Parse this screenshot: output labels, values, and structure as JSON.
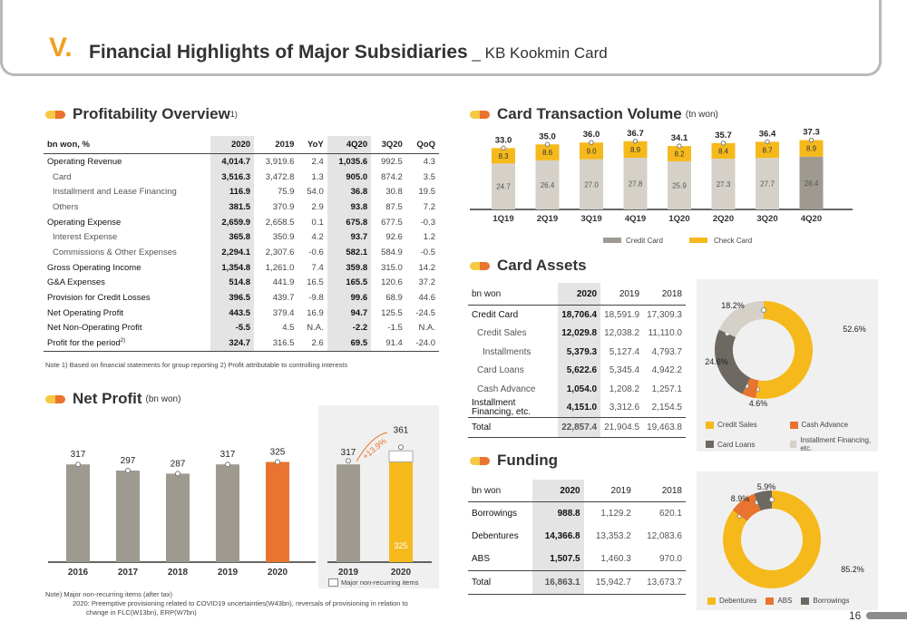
{
  "header": {
    "number": "V.",
    "title": "Financial Highlights of Major Subsidiaries",
    "separator": " _ ",
    "subtitle": "KB Kookmin Card",
    "page": "16"
  },
  "colors": {
    "gray": "#9e9a90",
    "dark": "#6d6861",
    "orange": "#e8742f",
    "yellow": "#f6b91b",
    "light": "#d5d1c8"
  },
  "profitability": {
    "title": "Profitability Overview",
    "sup": "1)",
    "headers": [
      "bn won, %",
      "2020",
      "2019",
      "YoY",
      "4Q20",
      "3Q20",
      "QoQ"
    ],
    "rows": [
      {
        "label": "Operating Revenue",
        "type": "main",
        "values": [
          "4,014.7",
          "3,919.6",
          "2.4",
          "1,035.6",
          "992.5",
          "4.3"
        ]
      },
      {
        "label": "Card",
        "type": "sub",
        "values": [
          "3,516.3",
          "3,472.8",
          "1.3",
          "905.0",
          "874.2",
          "3.5"
        ]
      },
      {
        "label": "Installment and Lease Financing",
        "type": "sub",
        "values": [
          "116.9",
          "75.9",
          "54.0",
          "36.8",
          "30.8",
          "19.5"
        ]
      },
      {
        "label": "Others",
        "type": "sub",
        "values": [
          "381.5",
          "370.9",
          "2.9",
          "93.8",
          "87.5",
          "7.2"
        ]
      },
      {
        "label": "Operating Expense",
        "type": "main",
        "values": [
          "2,659.9",
          "2,658.5",
          "0.1",
          "675.8",
          "677.5",
          "-0.3"
        ]
      },
      {
        "label": "Interest Expense",
        "type": "sub",
        "values": [
          "365.8",
          "350.9",
          "4.2",
          "93.7",
          "92.6",
          "1.2"
        ]
      },
      {
        "label": "Commissions & Other Expenses",
        "type": "sub",
        "values": [
          "2,294.1",
          "2,307.6",
          "-0.6",
          "582.1",
          "584.9",
          "-0.5"
        ]
      },
      {
        "label": "Gross Operating Income",
        "type": "main",
        "values": [
          "1,354.8",
          "1,261.0",
          "7.4",
          "359.8",
          "315.0",
          "14.2"
        ]
      },
      {
        "label": "G&A Expenses",
        "type": "main",
        "values": [
          "514.8",
          "441.9",
          "16.5",
          "165.5",
          "120.6",
          "37.2"
        ]
      },
      {
        "label": "Provision for Credit Losses",
        "type": "main",
        "values": [
          "396.5",
          "439.7",
          "-9.8",
          "99.6",
          "68.9",
          "44.6"
        ]
      },
      {
        "label": "Net Operating Profit",
        "type": "main",
        "values": [
          "443.5",
          "379.4",
          "16.9",
          "94.7",
          "125.5",
          "-24.5"
        ]
      },
      {
        "label": "Net Non-Operating Profit",
        "type": "main",
        "values": [
          "-5.5",
          "4.5",
          "N.A.",
          "-2.2",
          "-1.5",
          "N.A."
        ]
      },
      {
        "label": "Profit for the period",
        "sup": "2)",
        "type": "main",
        "values": [
          "324.7",
          "316.5",
          "2.6",
          "69.5",
          "91.4",
          "-24.0"
        ]
      }
    ],
    "note": "Note 1) Based on financial statements for group reporting   2) Profit attributable to controlling interests"
  },
  "net_profit": {
    "title": "Net Profit",
    "unit": "(bn won)",
    "growth_label": "+13.9%",
    "legend": "Major non-recurring items",
    "note1": "Note) Major non-recurring items (after tax)",
    "note2": "2020: Preemptive provisioning related to COVID19 uncertainties(W43bn), reversals of provisioning in relation to",
    "note3": "change in FLC(W13bn), ERP(W7bn)"
  },
  "card_volume": {
    "title": "Card Transaction Volume",
    "unit": "(tn won)",
    "legend_credit": "Credit Card",
    "legend_check": "Check Card"
  },
  "card_assets": {
    "title": "Card Assets",
    "headers": [
      "bn won",
      "2020",
      "2019",
      "2018"
    ],
    "rows": [
      {
        "label": "Credit Card",
        "type": "main",
        "values": [
          "18,706.4",
          "18,591.9",
          "17,309.3"
        ]
      },
      {
        "label": "Credit Sales",
        "type": "sub",
        "values": [
          "12,029.8",
          "12,038.2",
          "11,110.0"
        ]
      },
      {
        "label": "Installments",
        "type": "sub2",
        "values": [
          "5,379.3",
          "5,127.4",
          "4,793.7"
        ]
      },
      {
        "label": "Card Loans",
        "type": "sub",
        "values": [
          "5,622.6",
          "5,345.4",
          "4,942.2"
        ]
      },
      {
        "label": "Cash Advance",
        "type": "sub",
        "values": [
          "1,054.0",
          "1,208.2",
          "1,257.1"
        ]
      },
      {
        "label": "Installment Financing, etc.",
        "type": "main",
        "values": [
          "4,151.0",
          "3,312.6",
          "2,154.5"
        ]
      },
      {
        "label": "Total",
        "type": "tot",
        "values": [
          "22,857.4",
          "21,904.5",
          "19,463.8"
        ]
      }
    ]
  },
  "funding": {
    "title": "Funding",
    "headers": [
      "bn won",
      "2020",
      "2019",
      "2018"
    ],
    "rows": [
      {
        "label": "Borrowings",
        "type": "main",
        "values": [
          "988.8",
          "1,129.2",
          "620.1"
        ]
      },
      {
        "label": "Debentures",
        "type": "main",
        "values": [
          "14,366.8",
          "13,353.2",
          "12,083.6"
        ]
      },
      {
        "label": "ABS",
        "type": "main",
        "values": [
          "1,507.5",
          "1,460.3",
          "970.0"
        ]
      },
      {
        "label": "Total",
        "type": "tot",
        "values": [
          "16,863.1",
          "15,942.7",
          "13,673.7"
        ]
      }
    ]
  },
  "chart_data": [
    {
      "type": "bar",
      "title": "Net Profit",
      "categories": [
        "2016",
        "2017",
        "2018",
        "2019",
        "2020"
      ],
      "values": [
        317,
        297,
        287,
        317,
        325
      ],
      "ylabel": "",
      "xlabel": ""
    },
    {
      "type": "bar",
      "title": "",
      "categories": [
        "2019",
        "2020"
      ],
      "series": [
        {
          "name": "",
          "values": [
            317,
            325
          ]
        },
        {
          "name": "Major non-recurring items",
          "values": [
            0,
            36
          ]
        }
      ],
      "totals": [
        317,
        361
      ],
      "annotation": "+13.9%"
    },
    {
      "type": "bar",
      "stacked": true,
      "title": "Card Transaction Volume",
      "categories": [
        "1Q19",
        "2Q19",
        "3Q19",
        "4Q19",
        "1Q20",
        "2Q20",
        "3Q20",
        "4Q20"
      ],
      "series": [
        {
          "name": "Credit Card",
          "values": [
            24.7,
            26.4,
            27.0,
            27.8,
            25.9,
            27.3,
            27.7,
            28.4
          ]
        },
        {
          "name": "Check Card",
          "values": [
            8.3,
            8.6,
            9.0,
            8.9,
            8.2,
            8.4,
            8.7,
            8.9
          ]
        }
      ],
      "totals": [
        33.0,
        35.0,
        36.0,
        36.7,
        34.1,
        35.7,
        36.4,
        37.3
      ]
    },
    {
      "type": "pie",
      "title": "Card Assets",
      "donut": true,
      "labels": [
        "Credit Sales",
        "Cash Advance",
        "Card Loans",
        "Installment Financing, etc."
      ],
      "values": [
        52.6,
        4.6,
        24.6,
        18.2
      ],
      "value_labels": [
        "52.6%",
        "4.6%",
        "24.6%",
        "18.2%"
      ]
    },
    {
      "type": "pie",
      "title": "Funding",
      "donut": true,
      "labels": [
        "Debentures",
        "ABS",
        "Borrowings"
      ],
      "values": [
        85.2,
        8.9,
        5.9
      ],
      "value_labels": [
        "85.2%",
        "8.9%",
        "5.9%"
      ]
    }
  ]
}
